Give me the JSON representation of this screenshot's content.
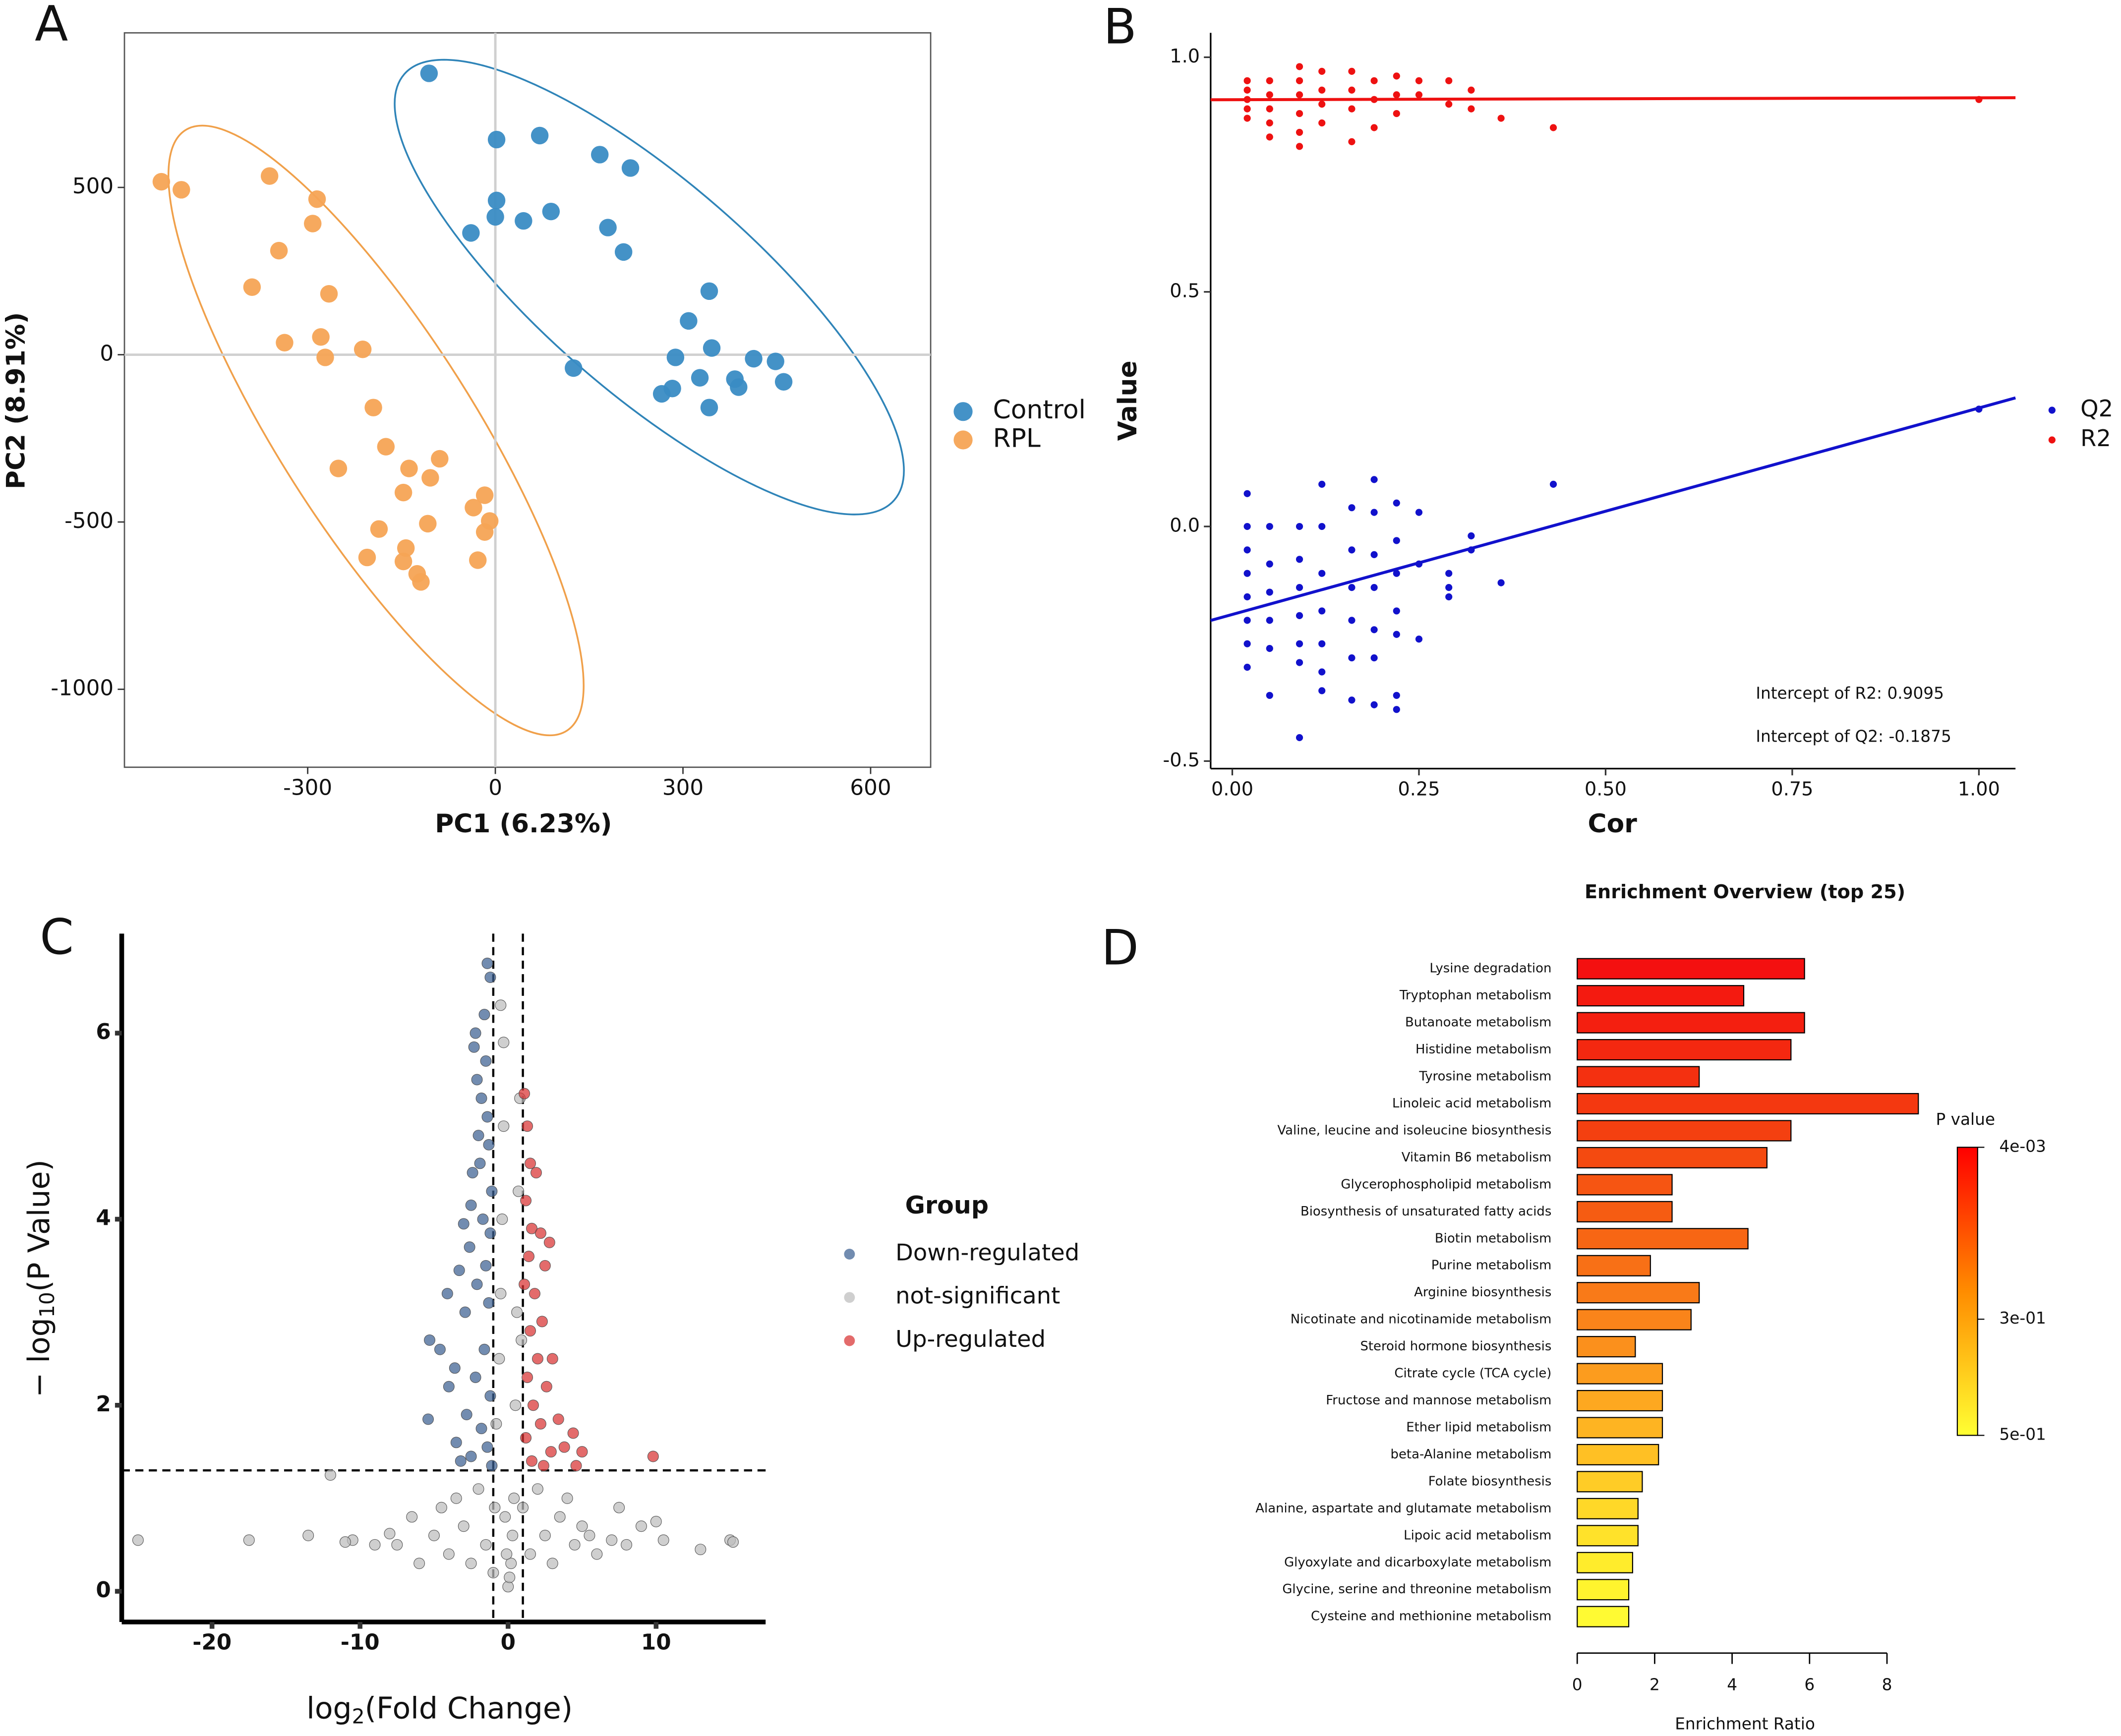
{
  "chart_data": [
    {
      "type": "scatter",
      "panel": "A",
      "xlabel": "PC1 (6.23%)",
      "ylabel": "PC2 (8.91%)",
      "xlim": [
        -593,
        696
      ],
      "ylim": [
        -1233,
        962
      ],
      "xticks": [
        -300,
        0,
        300,
        600
      ],
      "yticks": [
        500,
        0,
        -500,
        -1000
      ],
      "grid": false,
      "ref_lines": {
        "x": [
          0
        ],
        "y": [
          0
        ]
      },
      "series": [
        {
          "name": "Control",
          "color": "#3a8cc4",
          "x": [
            -106,
            2,
            71,
            2,
            0,
            45,
            89,
            167,
            216,
            180,
            205,
            -39,
            342,
            309,
            346,
            288,
            327,
            413,
            448,
            383,
            389,
            461,
            283,
            266,
            342,
            125
          ],
          "values": [
            841,
            643,
            655,
            461,
            412,
            400,
            428,
            598,
            558,
            380,
            307,
            364,
            190,
            101,
            20,
            -8,
            -69,
            -12,
            -20,
            -73,
            -97,
            -81,
            -101,
            -117,
            -158,
            -40
          ]
        },
        {
          "name": "RPL",
          "color": "#f5a455",
          "x": [
            -534,
            -502,
            -361,
            -285,
            -292,
            -346,
            -389,
            -266,
            -279,
            -337,
            -272,
            -212,
            -195,
            -175,
            -251,
            -89,
            -138,
            -104,
            -147,
            -186,
            -108,
            -17,
            -35,
            -9,
            -17,
            -143,
            -205,
            -147,
            -125,
            -119,
            -28
          ],
          "values": [
            517,
            493,
            534,
            465,
            392,
            311,
            202,
            182,
            53,
            36,
            -8,
            16,
            -158,
            -275,
            -340,
            -311,
            -340,
            -368,
            -412,
            -521,
            -505,
            -420,
            -457,
            -497,
            -530,
            -578,
            -606,
            -618,
            -655,
            -679,
            -614
          ]
        }
      ]
    },
    {
      "type": "scatter",
      "panel": "B",
      "xlabel": "Cor",
      "ylabel": "Value",
      "xlim": [
        -0.029,
        1.049
      ],
      "ylim": [
        -0.516,
        1.052
      ],
      "xticks": [
        {
          "value": 0,
          "label": "0.00"
        },
        {
          "value": 0.25,
          "label": "0.25"
        },
        {
          "value": 0.5,
          "label": "0.50"
        },
        {
          "value": 0.75,
          "label": "0.75"
        },
        {
          "value": 1,
          "label": "1.00"
        }
      ],
      "yticks": [
        {
          "value": 1,
          "label": "1.0"
        },
        0.5,
        {
          "value": 0,
          "label": "0.0"
        },
        -0.5
      ],
      "grid": false,
      "series": [
        {
          "name": "Q2",
          "color": "#1111cc",
          "x": [
            0.02,
            0.02,
            0.02,
            0.02,
            0.02,
            0.02,
            0.02,
            0.02,
            0.05,
            0.05,
            0.05,
            0.05,
            0.05,
            0.05,
            0.09,
            0.09,
            0.09,
            0.09,
            0.09,
            0.09,
            0.09,
            0.12,
            0.12,
            0.12,
            0.12,
            0.12,
            0.12,
            0.12,
            0.16,
            0.16,
            0.16,
            0.16,
            0.16,
            0.16,
            0.19,
            0.19,
            0.19,
            0.19,
            0.19,
            0.19,
            0.19,
            0.22,
            0.22,
            0.22,
            0.22,
            0.22,
            0.22,
            0.22,
            0.25,
            0.25,
            0.25,
            0.29,
            0.29,
            0.29,
            0.32,
            0.32,
            0.36,
            0.43,
            1.0
          ],
          "values": [
            0.07,
            0,
            -0.05,
            -0.1,
            -0.15,
            -0.2,
            -0.25,
            -0.3,
            0,
            -0.08,
            -0.14,
            -0.2,
            -0.26,
            -0.36,
            0,
            -0.07,
            -0.13,
            -0.19,
            -0.25,
            -0.29,
            -0.45,
            0.09,
            0,
            -0.1,
            -0.18,
            -0.25,
            -0.31,
            -0.35,
            0.04,
            -0.05,
            -0.13,
            -0.2,
            -0.28,
            -0.37,
            0.1,
            0.03,
            -0.06,
            -0.13,
            -0.22,
            -0.28,
            -0.38,
            0.05,
            -0.03,
            -0.1,
            -0.18,
            -0.23,
            -0.36,
            -0.39,
            0.03,
            -0.08,
            -0.24,
            -0.1,
            -0.13,
            -0.15,
            -0.02,
            -0.05,
            -0.12,
            0.09,
            0.25
          ]
        },
        {
          "name": "R2",
          "color": "#ee1111",
          "x": [
            0.02,
            0.02,
            0.02,
            0.02,
            0.02,
            0.05,
            0.05,
            0.05,
            0.05,
            0.05,
            0.09,
            0.09,
            0.09,
            0.09,
            0.09,
            0.09,
            0.12,
            0.12,
            0.12,
            0.12,
            0.16,
            0.16,
            0.16,
            0.16,
            0.19,
            0.19,
            0.19,
            0.22,
            0.22,
            0.22,
            0.25,
            0.25,
            0.29,
            0.29,
            0.32,
            0.32,
            0.36,
            0.43,
            1.0
          ],
          "values": [
            0.95,
            0.93,
            0.91,
            0.89,
            0.87,
            0.95,
            0.92,
            0.89,
            0.86,
            0.83,
            0.98,
            0.95,
            0.92,
            0.88,
            0.84,
            0.81,
            0.97,
            0.93,
            0.9,
            0.86,
            0.97,
            0.93,
            0.89,
            0.82,
            0.95,
            0.91,
            0.85,
            0.96,
            0.92,
            0.88,
            0.95,
            0.92,
            0.95,
            0.9,
            0.93,
            0.89,
            0.87,
            0.85,
            0.91
          ]
        }
      ],
      "trend_lines": [
        {
          "intercept": 0.9095,
          "slope": 0.004,
          "color": "#ee1111"
        },
        {
          "intercept": -0.1875,
          "slope": 0.44,
          "color": "#1111cc"
        }
      ],
      "annotations": [
        "Intercept of R2: 0.9095",
        "Intercept of Q2: -0.1875"
      ]
    },
    {
      "type": "scatter",
      "panel": "C",
      "xlabel": {
        "text": "log",
        "sub": "2",
        "rest": "(Fold Change)"
      },
      "ylabel": {
        "text": "− log",
        "sub": "10",
        "rest": "(P Value)"
      },
      "legend_title": "Group",
      "xlim": [
        -26.1,
        17.4
      ],
      "ylim": [
        -0.33,
        7.07
      ],
      "xticks": [
        -20,
        -10,
        0,
        10
      ],
      "yticks": [
        0,
        2,
        4,
        6
      ],
      "grid": false,
      "ref_lines": {
        "x": [
          -1,
          1
        ],
        "y": [
          1.3
        ]
      },
      "series": [
        {
          "name": "Down-regulated",
          "color": "#3b5f91",
          "x": [
            -1.4,
            -1.2,
            -1.6,
            -2.2,
            -2.3,
            -1.5,
            -2.1,
            -1.8,
            -1.4,
            -2.0,
            -1.3,
            -1.9,
            -2.4,
            -1.1,
            -2.5,
            -1.7,
            -3.0,
            -1.2,
            -2.6,
            -3.3,
            -1.5,
            -2.1,
            -4.1,
            -1.3,
            -2.9,
            -5.3,
            -4.6,
            -1.6,
            -3.6,
            -2.2,
            -4.0,
            -1.2,
            -5.4,
            -2.8,
            -1.8,
            -3.5,
            -1.4,
            -2.5,
            -3.2,
            -1.1
          ],
          "values": [
            6.75,
            6.6,
            6.2,
            6.0,
            5.85,
            5.7,
            5.5,
            5.3,
            5.1,
            4.9,
            4.8,
            4.6,
            4.5,
            4.3,
            4.15,
            4.0,
            3.95,
            3.85,
            3.7,
            3.45,
            3.5,
            3.3,
            3.2,
            3.1,
            3.0,
            2.7,
            2.6,
            2.6,
            2.4,
            2.3,
            2.2,
            2.1,
            1.85,
            1.9,
            1.75,
            1.6,
            1.55,
            1.45,
            1.4,
            1.35
          ]
        },
        {
          "name": "not-significant",
          "color": "#bdbdbd",
          "x": [
            -25,
            -17.5,
            -10.5,
            -11,
            -8,
            -7.5,
            -6.5,
            -5,
            -4.5,
            -4,
            -3.5,
            -3,
            -2.5,
            -2,
            -1.5,
            -1,
            -0.8,
            -0.6,
            -0.5,
            -0.4,
            -0.3,
            -0.5,
            -0.3,
            0,
            0.2,
            0.4,
            0.5,
            0.6,
            0.7,
            0.8,
            0.3,
            -0.2,
            0.1,
            -0.1,
            1,
            1.5,
            2,
            2.5,
            3,
            3.5,
            4,
            4.5,
            5,
            6,
            7,
            7.5,
            8,
            9,
            10,
            10.5,
            13,
            15,
            15.2,
            -13.5,
            -9,
            -6,
            5.5,
            -12,
            0.9,
            -0.9
          ],
          "values": [
            0.55,
            0.55,
            0.55,
            0.53,
            0.62,
            0.5,
            0.8,
            0.6,
            0.9,
            0.4,
            1.0,
            0.7,
            0.3,
            1.1,
            0.5,
            0.2,
            1.8,
            2.5,
            3.2,
            4.0,
            5.0,
            6.3,
            5.9,
            0.05,
            0.3,
            1.0,
            2.0,
            3.0,
            4.3,
            5.3,
            0.6,
            0.8,
            0.15,
            0.4,
            0.9,
            0.4,
            1.1,
            0.6,
            0.3,
            0.8,
            1.0,
            0.5,
            0.7,
            0.4,
            0.55,
            0.9,
            0.5,
            0.7,
            0.75,
            0.55,
            0.45,
            0.55,
            0.53,
            0.6,
            0.5,
            0.3,
            0.6,
            1.25,
            2.7,
            0.9
          ]
        },
        {
          "name": "Up-regulated",
          "color": "#d83232",
          "x": [
            1.1,
            1.3,
            1.5,
            1.9,
            1.2,
            1.6,
            2.2,
            2.8,
            1.4,
            2.5,
            1.1,
            1.8,
            2.3,
            1.5,
            3.0,
            2.0,
            1.3,
            2.6,
            1.7,
            3.4,
            2.2,
            4.4,
            1.2,
            3.8,
            2.9,
            5.0,
            9.8,
            1.6,
            4.6,
            2.4
          ],
          "values": [
            5.35,
            5.0,
            4.6,
            4.5,
            4.2,
            3.9,
            3.85,
            3.75,
            3.6,
            3.5,
            3.3,
            3.2,
            2.9,
            2.8,
            2.5,
            2.5,
            2.3,
            2.2,
            2.0,
            1.85,
            1.8,
            1.7,
            1.65,
            1.55,
            1.5,
            1.5,
            1.45,
            1.4,
            1.35,
            1.35
          ]
        }
      ]
    },
    {
      "type": "bar",
      "panel": "D",
      "title": "Enrichment Overview (top 25)",
      "xlabel": "Enrichment Ratio",
      "categories": [
        "Lysine degradation",
        "Tryptophan metabolism",
        "Butanoate metabolism",
        "Histidine metabolism",
        "Tyrosine metabolism",
        "Linoleic acid metabolism",
        "Valine, leucine and isoleucine biosynthesis",
        "Vitamin B6 metabolism",
        "Glycerophospholipid metabolism",
        "Biosynthesis of unsaturated fatty acids",
        "Biotin metabolism",
        "Purine metabolism",
        "Arginine biosynthesis",
        "Nicotinate and nicotinamide metabolism",
        "Steroid hormone biosynthesis",
        "Citrate cycle (TCA cycle)",
        "Fructose and mannose metabolism",
        "Ether lipid metabolism",
        "beta-Alanine metabolism",
        "Folate biosynthesis",
        "Alanine, aspartate and glutamate metabolism",
        "Lipoic acid metabolism",
        "Glyoxylate and dicarboxylate metabolism",
        "Glycine, serine and threonine metabolism",
        "Cysteine and methionine metabolism"
      ],
      "values": [
        5.87,
        4.3,
        5.87,
        5.52,
        3.15,
        8.81,
        5.52,
        4.9,
        2.45,
        2.45,
        4.41,
        1.89,
        3.15,
        2.94,
        1.5,
        2.2,
        2.2,
        2.2,
        2.1,
        1.68,
        1.57,
        1.57,
        1.43,
        1.33,
        1.33
      ],
      "colors": [
        "#f41010",
        "#f41a10",
        "#f41f10",
        "#f42810",
        "#f43010",
        "#f43810",
        "#f44010",
        "#f44a10",
        "#f65512",
        "#f65c12",
        "#f76614",
        "#f87016",
        "#f97a18",
        "#fa841a",
        "#fb901c",
        "#fc9c1e",
        "#fda820",
        "#feb422",
        "#ffc024",
        "#ffcc26",
        "#ffd828",
        "#ffe22a",
        "#ffec2c",
        "#fff42e",
        "#fffa33"
      ],
      "xlim": [
        0,
        8
      ],
      "xticks": [
        0,
        2,
        4,
        6,
        8
      ],
      "grid": false,
      "colorbar": {
        "title": "P value",
        "range": [
          0.004,
          0.5
        ],
        "colors": [
          "#ff0000",
          "#ff8c00",
          "#ffff33"
        ],
        "ticks": [
          {
            "value": 0.004,
            "label": "4e-03"
          },
          {
            "value": 0.3,
            "label": "3e-01"
          },
          {
            "value": 0.5,
            "label": "5e-01"
          }
        ]
      }
    }
  ]
}
